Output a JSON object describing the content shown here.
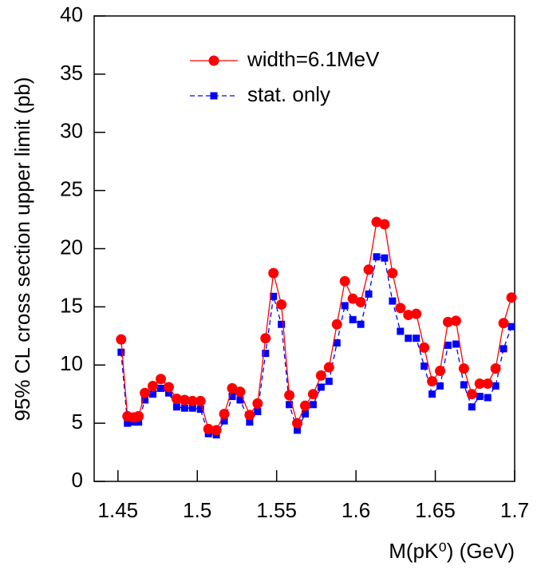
{
  "chart_data": {
    "type": "line",
    "y_label": "95% CL cross section upper limit (pb)",
    "x_label": "M(pK⁰) (GeV)",
    "x": [
      1.452,
      1.456,
      1.46,
      1.463,
      1.467,
      1.472,
      1.477,
      1.482,
      1.487,
      1.492,
      1.497,
      1.502,
      1.507,
      1.512,
      1.517,
      1.522,
      1.527,
      1.533,
      1.538,
      1.543,
      1.548,
      1.553,
      1.558,
      1.563,
      1.568,
      1.573,
      1.578,
      1.583,
      1.588,
      1.593,
      1.598,
      1.603,
      1.608,
      1.613,
      1.618,
      1.623,
      1.628,
      1.633,
      1.638,
      1.643,
      1.648,
      1.653,
      1.658,
      1.663,
      1.668,
      1.673,
      1.678,
      1.683,
      1.688,
      1.693,
      1.698
    ],
    "series": [
      {
        "name": "stat. only",
        "color": "#0000ff",
        "marker": "square",
        "dashed": true,
        "values": [
          11.1,
          5.0,
          5.1,
          5.1,
          7.0,
          7.5,
          8.0,
          7.6,
          6.4,
          6.3,
          6.3,
          6.2,
          4.1,
          4.0,
          5.2,
          7.3,
          7.0,
          5.1,
          6.0,
          11.0,
          15.9,
          13.5,
          6.6,
          4.4,
          5.8,
          6.6,
          8.1,
          8.6,
          11.9,
          15.1,
          13.9,
          13.5,
          16.1,
          19.3,
          19.2,
          15.5,
          12.9,
          12.3,
          12.3,
          9.9,
          7.5,
          8.2,
          11.7,
          11.8,
          8.3,
          6.4,
          7.3,
          7.2,
          8.2,
          11.4,
          13.3
        ]
      },
      {
        "name": "width=6.1MeV",
        "color": "#ff0000",
        "marker": "circle",
        "dashed": false,
        "values": [
          12.2,
          5.6,
          5.5,
          5.6,
          7.6,
          8.2,
          8.8,
          8.1,
          7.1,
          7.0,
          6.9,
          6.9,
          4.5,
          4.4,
          5.8,
          8.0,
          7.7,
          5.7,
          6.7,
          12.3,
          17.9,
          15.2,
          7.4,
          5.0,
          6.5,
          7.5,
          9.1,
          9.8,
          13.5,
          17.2,
          15.7,
          15.4,
          18.2,
          22.3,
          22.1,
          17.9,
          14.9,
          14.3,
          14.4,
          11.5,
          8.6,
          9.5,
          13.7,
          13.8,
          9.7,
          7.5,
          8.4,
          8.4,
          9.7,
          13.6,
          15.8
        ]
      }
    ],
    "legend_order": [
      1,
      0
    ],
    "xlim": [
      1.435,
      1.7
    ],
    "xticks": [
      1.45,
      1.5,
      1.55,
      1.6,
      1.65,
      1.7
    ],
    "ylim": [
      0,
      40
    ],
    "yticks": [
      0,
      5,
      10,
      15,
      20,
      25,
      30,
      35,
      40
    ],
    "grid": false,
    "legend": "top"
  }
}
